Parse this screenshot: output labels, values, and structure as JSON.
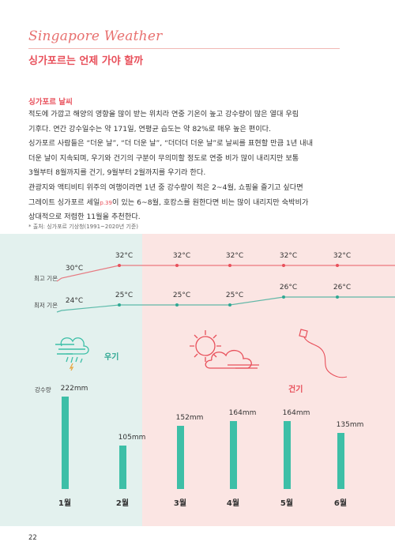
{
  "header": {
    "eng_title": "Singapore Weather",
    "kr_title": "싱가포르는 언제 가야 할까"
  },
  "section": {
    "title": "싱가포르 날씨",
    "lines": [
      "적도에 가깝고 해양의 영향을 많이 받는 위치라 연중 기온이 높고 강수량이 많은 열대 우림",
      "기후다. 연간 강수일수는 약 171일, 연평균 습도는 약 82%로 매우 높은 편이다.",
      "싱가포르 사람들은 “더운 날”, “더 더운 날”, “더더더 더운 날”로 날씨를 표현할 만큼 1년 내내",
      "더운 날이 지속되며, 우기와 건기의 구분이 무의미할 정도로 연중 비가 많이 내리지만 보통",
      "3월부터 8월까지를 건기, 9월부터 2월까지를 우기라 한다.",
      "관광지와 액티비티 위주의 여행이라면 1년 중 강수량이 적은 2~4월, 쇼핑을 즐기고 싶다면",
      "그레이트 싱가포르 세일",
      "이 있는 6~8월, 호캉스를 원한다면 비는 많이 내리지만 숙박비가",
      "상대적으로 저렴한 11월을 추천한다."
    ],
    "page_ref": "p.39"
  },
  "source_note": "* 출처: 싱가포르 기상청(1991~2020년 기준)",
  "labels": {
    "high": "최고 기온",
    "low": "최저 기온",
    "rain": "강수량",
    "wet_season": "우기",
    "dry_season": "건기"
  },
  "colors": {
    "high_line": "#e8505b",
    "low_line": "#2fa893",
    "bar": "#3dbfa7",
    "wet_bg": "#e3f1ee",
    "dry_bg": "#fbe5e3"
  },
  "chart_data": {
    "type": "bar",
    "categories": [
      "1월",
      "2월",
      "3월",
      "4월",
      "5월",
      "6월"
    ],
    "rainfall": {
      "values": [
        222,
        105,
        152,
        164,
        164,
        135
      ],
      "labels": [
        "222mm",
        "105mm",
        "152mm",
        "164mm",
        "164mm",
        "135mm"
      ]
    },
    "high_temp": {
      "values": [
        30,
        32,
        32,
        32,
        32,
        32
      ],
      "labels": [
        "30°C",
        "32°C",
        "32°C",
        "32°C",
        "32°C",
        "32°C"
      ]
    },
    "low_temp": {
      "values": [
        24,
        25,
        25,
        25,
        26,
        26
      ],
      "labels": [
        "24°C",
        "25°C",
        "25°C",
        "25°C",
        "26°C",
        "26°C"
      ]
    }
  },
  "page_number": "22"
}
